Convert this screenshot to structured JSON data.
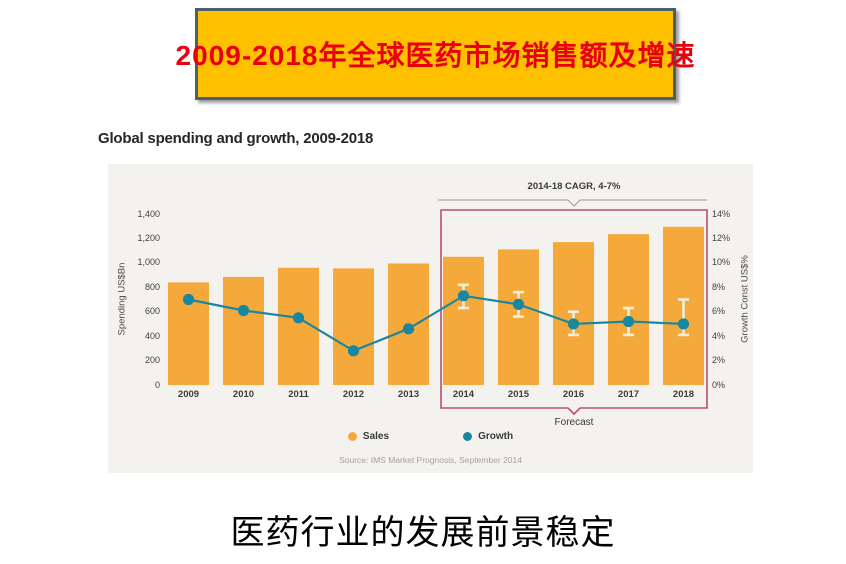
{
  "banner": {
    "title": "2009-2018年全球医药市场销售额及增速",
    "bg_color": "#FFC000",
    "text_color": "#E8000F",
    "border_color": "#4d5e6c"
  },
  "chart": {
    "title": "Global spending and growth, 2009-2018",
    "source": "Source: IMS Market Prognosis, September 2014",
    "panel_color": "#F4F2EF"
  },
  "chart_data": {
    "type": "bar",
    "subtype": "bar+line combo",
    "title": "Global spending and growth, 2009-2018",
    "categories": [
      "2009",
      "2010",
      "2011",
      "2012",
      "2013",
      "2014",
      "2015",
      "2016",
      "2017",
      "2018"
    ],
    "series": [
      {
        "name": "Sales",
        "type": "bar",
        "axis": "left",
        "unit": "US$Bn",
        "color": "#F6A93B",
        "values": [
          840,
          885,
          960,
          955,
          995,
          1050,
          1110,
          1170,
          1235,
          1295
        ]
      },
      {
        "name": "Growth",
        "type": "line",
        "axis": "right",
        "unit": "%",
        "color": "#1A87A0",
        "values": [
          7.0,
          6.1,
          5.5,
          2.8,
          4.6,
          7.3,
          6.6,
          5.0,
          5.2,
          5.0
        ],
        "error_bars": {
          "start_category": "2014",
          "low": [
            6.3,
            5.6,
            4.1,
            4.1,
            4.1
          ],
          "high": [
            8.2,
            7.6,
            6.0,
            6.3,
            7.0
          ],
          "color": "#F2ECD8"
        }
      }
    ],
    "left_axis": {
      "label": "Spending US$Bn",
      "min": 0,
      "max": 1400,
      "ticks": [
        "1,400",
        "1,200",
        "1,000",
        "800",
        "600",
        "400",
        "200",
        "0"
      ]
    },
    "right_axis": {
      "label": "Growth Const US$%",
      "min": 0,
      "max": 14,
      "ticks": [
        "14%",
        "12%",
        "10%",
        "8%",
        "6%",
        "4%",
        "2%",
        "0%"
      ]
    },
    "annotation": {
      "label": "2014-18 CAGR, 4-7%",
      "line_color": "#9b9b9b"
    },
    "forecast": {
      "label": "Forecast",
      "from": "2014",
      "to": "2018",
      "box_color": "#BB4F68"
    },
    "legend": [
      {
        "label": "Sales",
        "color": "#F6A93B"
      },
      {
        "label": "Growth",
        "color": "#1A87A0"
      }
    ],
    "grid": false,
    "legend_position": "bottom"
  },
  "footer": {
    "text": "医药行业的发展前景稳定"
  }
}
